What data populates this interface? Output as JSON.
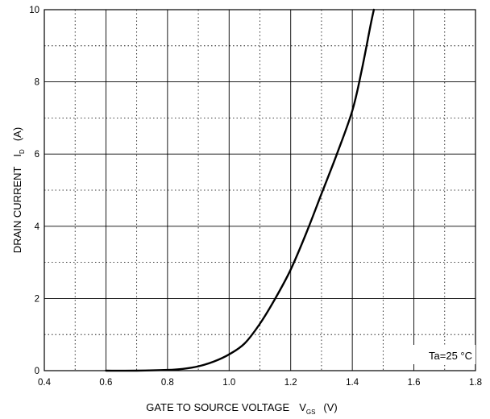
{
  "chart_data": {
    "type": "line",
    "title": "",
    "xlabel": {
      "main": "GATE TO SOURCE VOLTAGE",
      "symbol": "V",
      "subscript": "GS",
      "unit": "(V)"
    },
    "ylabel": {
      "main": "DRAIN CURRENT",
      "symbol": "I",
      "subscript": "D",
      "unit": "(A)"
    },
    "xlim": [
      0.4,
      1.8
    ],
    "ylim": [
      0,
      10
    ],
    "x_ticks": [
      "0.4",
      "0.6",
      "0.8",
      "1.0",
      "1.2",
      "1.4",
      "1.6",
      "1.8"
    ],
    "y_ticks": [
      "0",
      "2",
      "4",
      "6",
      "8",
      "10"
    ],
    "x_minor_step": 0.1,
    "y_minor_step": 1,
    "grid": true,
    "annotation": "Ta=25 °C",
    "series": [
      {
        "name": "",
        "x": [
          0.6,
          0.7,
          0.8,
          0.85,
          0.9,
          0.95,
          1.0,
          1.05,
          1.1,
          1.15,
          1.2,
          1.25,
          1.3,
          1.35,
          1.4,
          1.43,
          1.46,
          1.47
        ],
        "y": [
          0.0,
          0.0,
          0.02,
          0.05,
          0.12,
          0.25,
          0.45,
          0.75,
          1.3,
          2.0,
          2.8,
          3.8,
          4.9,
          6.0,
          7.2,
          8.3,
          9.6,
          10.0
        ]
      }
    ]
  }
}
